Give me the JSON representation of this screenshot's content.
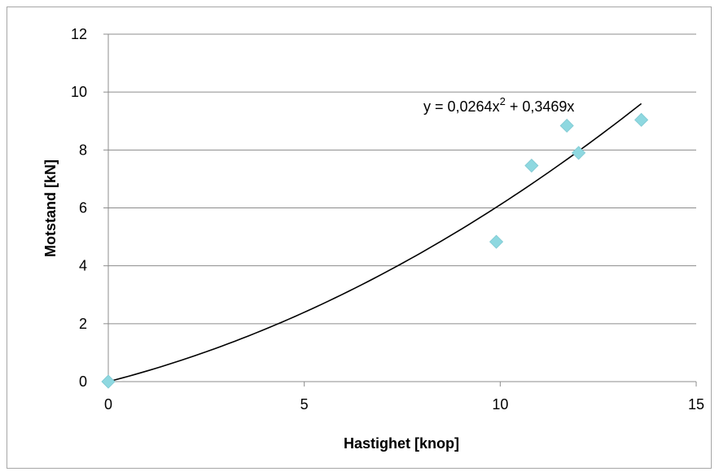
{
  "chart_data": {
    "type": "scatter",
    "xlabel": "Hastighet [knop]",
    "ylabel": "Motstand [kN]",
    "xlim": [
      0,
      15
    ],
    "ylim": [
      0,
      12
    ],
    "x_ticks": [
      "0",
      "5",
      "10",
      "15"
    ],
    "y_ticks": [
      "0",
      "2",
      "4",
      "6",
      "8",
      "10",
      "12"
    ],
    "grid": "horizontal",
    "legend": "none",
    "marker_color": "#8ed8e0",
    "series": [
      {
        "points": [
          {
            "x": 0,
            "y": 0
          },
          {
            "x": 9.9,
            "y": 4.83
          },
          {
            "x": 10.8,
            "y": 7.46
          },
          {
            "x": 11.7,
            "y": 8.84
          },
          {
            "x": 12.0,
            "y": 7.9
          },
          {
            "x": 13.6,
            "y": 9.04
          }
        ]
      }
    ],
    "trendline": {
      "type": "polynomial",
      "a": 0.0264,
      "b": 0.3469,
      "x_range": [
        0,
        13.6
      ],
      "color": "#000000",
      "equation_prefix": "y = 0,0264x",
      "equation_sup": "2",
      "equation_suffix": " + 0,3469x"
    }
  }
}
